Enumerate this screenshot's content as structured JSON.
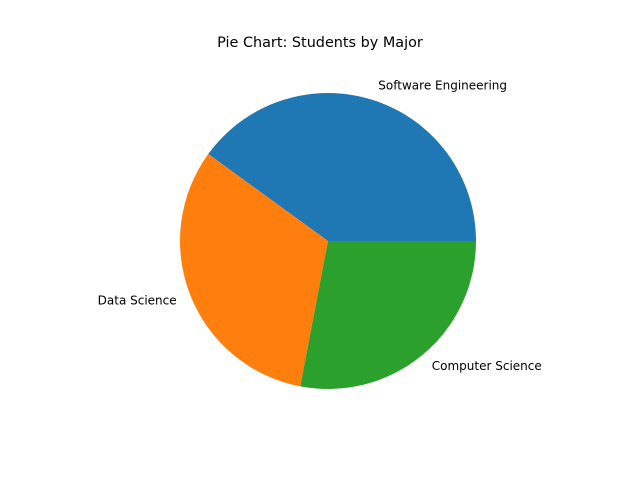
{
  "chart_data": {
    "type": "pie",
    "title": "Pie Chart: Students by Major",
    "labels": [
      "Software Engineering",
      "Data Science",
      "Computer Science"
    ],
    "values": [
      40,
      32,
      28
    ],
    "colors": [
      "#1f77b4",
      "#ff7f0e",
      "#2ca02c"
    ],
    "start_angle_deg": 0,
    "direction": "counterclockwise",
    "legend": "none"
  }
}
